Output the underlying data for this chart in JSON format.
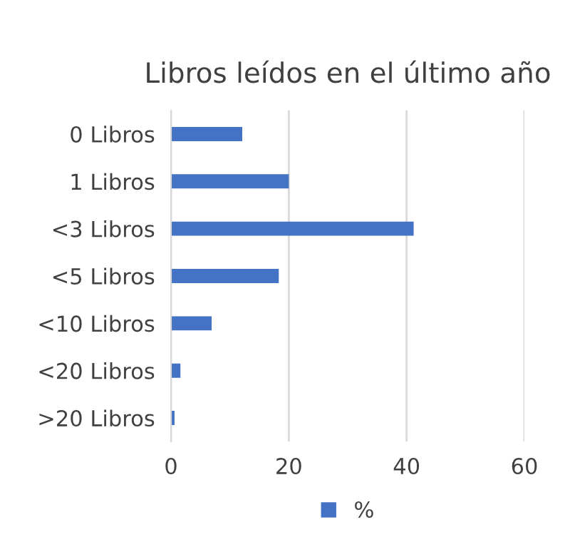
{
  "chart_data": {
    "type": "bar",
    "orientation": "horizontal",
    "title": "Libros leídos en el último año",
    "categories": [
      "0 Libros",
      "1 Libros",
      "<3 Libros",
      "<5 Libros",
      "<10 Libros",
      "<20 Libros",
      ">20 Libros"
    ],
    "series": [
      {
        "name": "%",
        "color": "#4472c4",
        "values": [
          12.1,
          20,
          41.2,
          18.3,
          6.9,
          1.6,
          0.6
        ]
      }
    ],
    "xlim": [
      0,
      60
    ],
    "xticks": [
      0,
      20,
      40,
      60
    ],
    "grid": "x",
    "legend": "bottom"
  }
}
